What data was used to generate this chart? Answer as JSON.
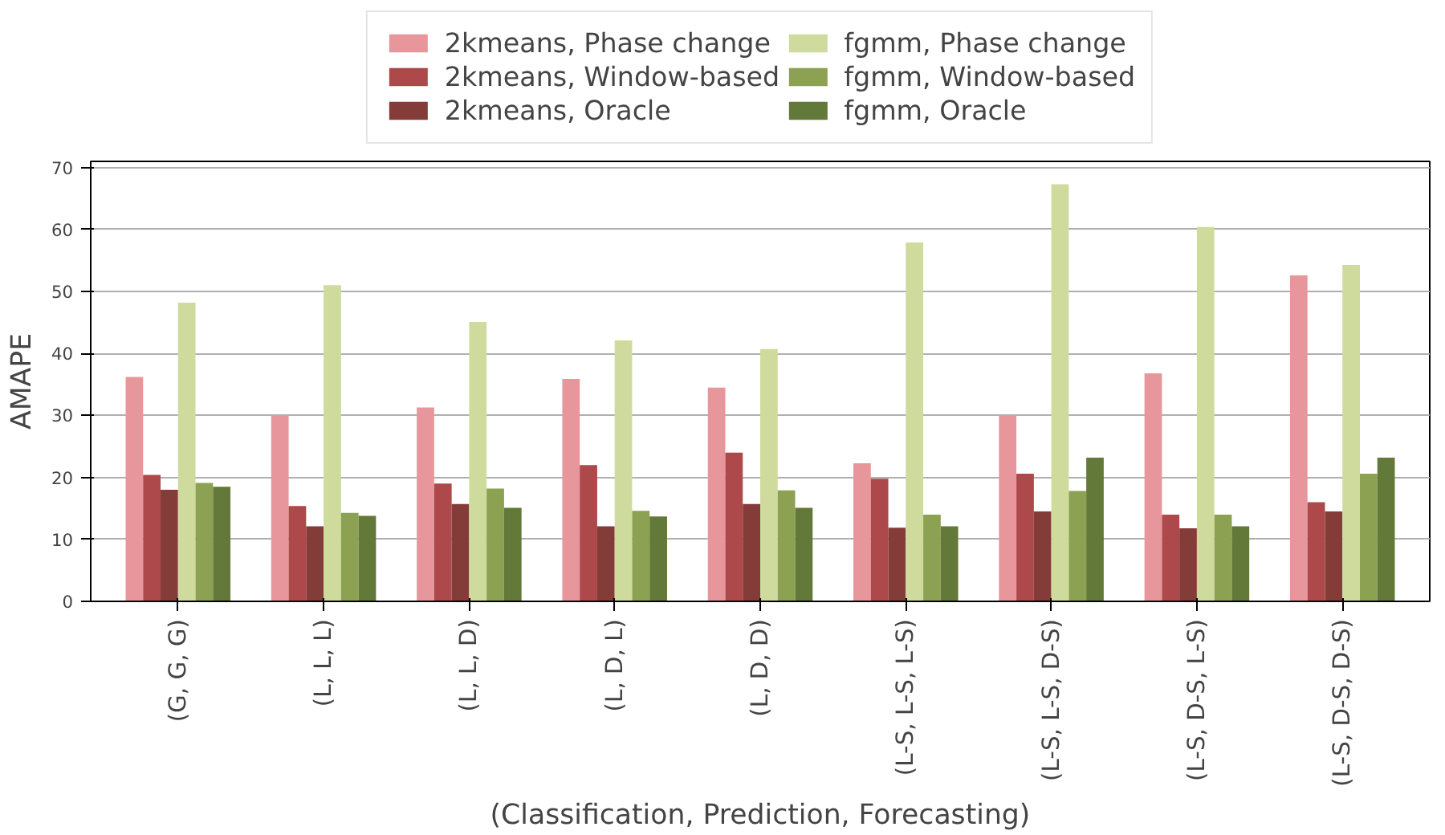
{
  "chart_data": {
    "type": "bar",
    "xlabel": "(Classification, Prediction, Forecasting)",
    "ylabel": "AMAPE",
    "categories": [
      "(G, G, G)",
      "(L, L, L)",
      "(L, L, D)",
      "(L, D, L)",
      "(L, D, D)",
      "(L-S, L-S, L-S)",
      "(L-S, L-S, D-S)",
      "(L-S, D-S, L-S)",
      "(L-S, D-S, D-S)"
    ],
    "series": [
      {
        "name": "2kmeans, Phase change",
        "color": "#e7969c",
        "values": [
          36.2,
          30.0,
          31.3,
          35.9,
          34.5,
          22.3,
          30.0,
          36.8,
          52.6
        ]
      },
      {
        "name": "2kmeans, Window-based",
        "color": "#ad494a",
        "values": [
          20.4,
          15.4,
          19.0,
          22.0,
          24.0,
          19.8,
          20.6,
          14.0,
          16.0
        ]
      },
      {
        "name": "2kmeans, Oracle",
        "color": "#843c39",
        "values": [
          18.0,
          12.1,
          15.7,
          12.1,
          15.7,
          11.9,
          14.5,
          11.8,
          14.5
        ]
      },
      {
        "name": "fgmm, Phase change",
        "color": "#cedb9c",
        "values": [
          48.2,
          51.0,
          45.1,
          42.1,
          40.7,
          57.9,
          67.3,
          60.4,
          54.3
        ]
      },
      {
        "name": "fgmm, Window-based",
        "color": "#8ca252",
        "values": [
          19.1,
          14.3,
          18.2,
          14.6,
          17.9,
          14.0,
          17.8,
          14.0,
          20.6
        ]
      },
      {
        "name": "fgmm, Oracle",
        "color": "#637939",
        "values": [
          18.5,
          13.8,
          15.1,
          13.7,
          15.1,
          12.1,
          23.2,
          12.1,
          23.2
        ]
      }
    ],
    "ylim": [
      0,
      71
    ],
    "yticks": [
      0,
      10,
      20,
      30,
      40,
      50,
      60,
      70
    ],
    "grid": "y",
    "legend": "top"
  }
}
